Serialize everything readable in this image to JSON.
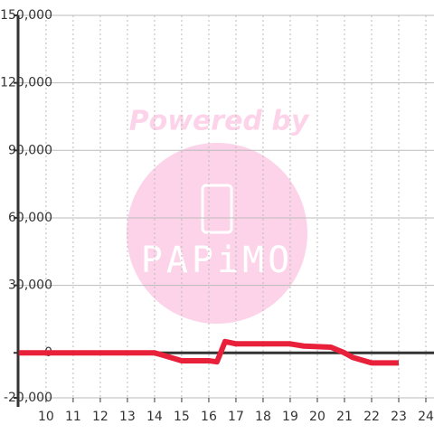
{
  "chart_data": {
    "type": "line",
    "watermark": "Powered by",
    "watermark_logo": "PAPiMO",
    "x": [
      9,
      14,
      14.3,
      15,
      16,
      16.3,
      16.6,
      17,
      18,
      19,
      19.5,
      20.5,
      21,
      21.3,
      22,
      23
    ],
    "series": [
      {
        "color": "#e8203a",
        "values": [
          0,
          0,
          -1000,
          -3500,
          -3500,
          -4000,
          5000,
          4000,
          4000,
          4000,
          3000,
          2500,
          0,
          -2000,
          -4500,
          -4500
        ]
      }
    ],
    "xlim": [
      8.97,
      24.3
    ],
    "xticks": [
      10,
      11,
      12,
      13,
      14,
      15,
      16,
      17,
      18,
      19,
      20,
      21,
      22,
      23,
      24
    ],
    "ylim": [
      -20000,
      150000
    ],
    "yticks": [
      {
        "value": -20000,
        "label": "-20,000"
      },
      {
        "value": 0,
        "label": "0"
      },
      {
        "value": 30000,
        "label": "30,000"
      },
      {
        "value": 60000,
        "label": "60,000"
      },
      {
        "value": 90000,
        "label": "90,000"
      },
      {
        "value": 120000,
        "label": "120,000"
      },
      {
        "value": 150000,
        "label": "150,000"
      }
    ],
    "grid": true
  }
}
